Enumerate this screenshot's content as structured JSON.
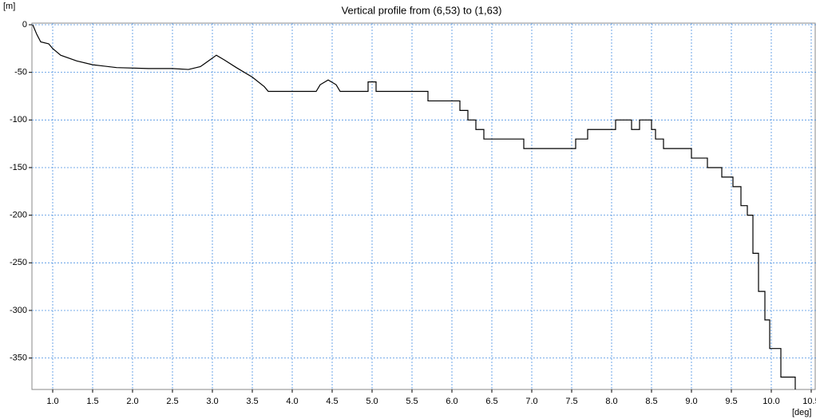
{
  "chart_data": {
    "type": "line",
    "title": "Vertical profile from (6,53) to (1,63)",
    "y_label": "[m]",
    "x_label": "[deg]",
    "color": "#000000",
    "grid": true,
    "grid_color": "#4a90e2",
    "xlim": [
      0.74,
      10.56
    ],
    "ylim": [
      -383,
      0
    ],
    "xticks": [
      {
        "value": 1,
        "label": "1.0"
      },
      {
        "value": 1.5,
        "label": "1.5"
      },
      {
        "value": 2,
        "label": "2.0"
      },
      {
        "value": 2.5,
        "label": "2.5"
      },
      {
        "value": 3,
        "label": "3.0"
      },
      {
        "value": 3.5,
        "label": "3.5"
      },
      {
        "value": 4,
        "label": "4.0"
      },
      {
        "value": 4.5,
        "label": "4.5"
      },
      {
        "value": 5,
        "label": "5.0"
      },
      {
        "value": 5.5,
        "label": "5.5"
      },
      {
        "value": 6,
        "label": "6.0"
      },
      {
        "value": 6.5,
        "label": "6.5"
      },
      {
        "value": 7,
        "label": "7.0"
      },
      {
        "value": 7.5,
        "label": "7.5"
      },
      {
        "value": 8,
        "label": "8.0"
      },
      {
        "value": 8.5,
        "label": "8.5"
      },
      {
        "value": 9,
        "label": "9.0"
      },
      {
        "value": 9.5,
        "label": "9.5"
      },
      {
        "value": 10,
        "label": "10.0"
      },
      {
        "value": 10.5,
        "label": "10.5"
      }
    ],
    "yticks": [
      0,
      -50,
      -100,
      -150,
      -200,
      -250,
      -300,
      -350
    ],
    "x": [
      0.75,
      0.8,
      0.85,
      0.95,
      1.0,
      1.1,
      1.3,
      1.5,
      1.8,
      2.2,
      2.5,
      2.7,
      2.85,
      2.95,
      3.05,
      3.15,
      3.3,
      3.5,
      3.65,
      3.7,
      4.3,
      4.35,
      4.45,
      4.55,
      4.6,
      4.95,
      4.95,
      5.05,
      5.05,
      5.7,
      5.7,
      6.1,
      6.1,
      6.2,
      6.2,
      6.3,
      6.3,
      6.4,
      6.4,
      6.9,
      6.9,
      7.55,
      7.55,
      7.7,
      7.7,
      8.05,
      8.05,
      8.25,
      8.25,
      8.35,
      8.35,
      8.5,
      8.5,
      8.55,
      8.55,
      8.65,
      8.65,
      9.0,
      9.0,
      9.2,
      9.2,
      9.38,
      9.38,
      9.52,
      9.52,
      9.62,
      9.62,
      9.7,
      9.7,
      9.77,
      9.77,
      9.84,
      9.84,
      9.92,
      9.92,
      9.98,
      9.98,
      10.12,
      10.12,
      10.3,
      10.3
    ],
    "values": [
      0,
      -10,
      -18,
      -20,
      -25,
      -32,
      -38,
      -42,
      -45,
      -46,
      -46,
      -47,
      -44,
      -38,
      -32,
      -37,
      -45,
      -55,
      -65,
      -70,
      -70,
      -63,
      -58,
      -63,
      -70,
      -70,
      -60,
      -60,
      -70,
      -70,
      -80,
      -80,
      -90,
      -90,
      -100,
      -100,
      -110,
      -110,
      -120,
      -120,
      -130,
      -130,
      -120,
      -120,
      -110,
      -110,
      -100,
      -100,
      -110,
      -110,
      -100,
      -100,
      -110,
      -110,
      -120,
      -120,
      -130,
      -130,
      -140,
      -140,
      -150,
      -150,
      -160,
      -160,
      -170,
      -170,
      -190,
      -190,
      -200,
      -200,
      -240,
      -240,
      -280,
      -280,
      -310,
      -310,
      -340,
      -340,
      -370,
      -370,
      -383
    ]
  }
}
